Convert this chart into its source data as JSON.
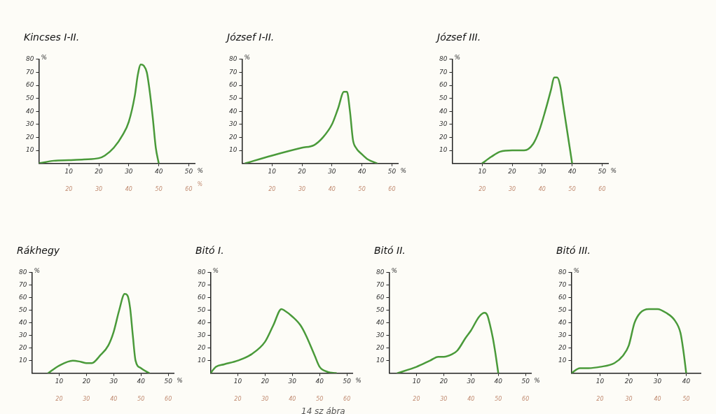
{
  "chart_data": [
    {
      "type": "line",
      "title": "Kincses I-II.",
      "ylabel": "%",
      "xlabel": "%",
      "x2label": "%",
      "xlim": [
        0,
        52
      ],
      "xticks": [
        10,
        20,
        30,
        40,
        50
      ],
      "ylim": [
        0,
        80
      ],
      "yticks": [
        10,
        20,
        30,
        40,
        50,
        60,
        70,
        80
      ],
      "x2lim": [
        10,
        62
      ],
      "x2ticks": [
        20,
        30,
        40,
        50,
        60
      ],
      "marker": "none",
      "series": [
        {
          "color": "#4a9a3a",
          "x": [
            0,
            5,
            10,
            15,
            20,
            22,
            25,
            28,
            30,
            32,
            33,
            34,
            35,
            36,
            37,
            38,
            39,
            40
          ],
          "values": [
            0,
            2,
            2.5,
            3,
            4,
            6,
            12,
            22,
            32,
            52,
            68,
            76,
            75,
            70,
            55,
            35,
            12,
            0
          ]
        }
      ]
    },
    {
      "type": "line",
      "title": "József I-II.",
      "ylabel": "%",
      "xlabel": "%",
      "xlim": [
        0,
        52
      ],
      "xticks": [
        10,
        20,
        30,
        40,
        50
      ],
      "ylim": [
        0,
        80
      ],
      "yticks": [
        10,
        20,
        30,
        40,
        50,
        60,
        70,
        80
      ],
      "x2lim": [
        10,
        62
      ],
      "x2ticks": [
        20,
        30,
        40,
        50,
        60
      ],
      "marker": "none",
      "series": [
        {
          "color": "#4a9a3a",
          "x": [
            1,
            10,
            20,
            24,
            27,
            30,
            32,
            34,
            35,
            36,
            37,
            38,
            40,
            42,
            45
          ],
          "values": [
            0,
            6,
            12,
            14,
            20,
            30,
            42,
            55,
            55,
            40,
            18,
            12,
            7,
            3,
            0
          ]
        }
      ]
    },
    {
      "type": "line",
      "title": "József III.",
      "ylabel": "%",
      "xlabel": "%",
      "xlim": [
        0,
        52
      ],
      "xticks": [
        10,
        20,
        30,
        40,
        50
      ],
      "ylim": [
        0,
        80
      ],
      "yticks": [
        10,
        20,
        30,
        40,
        50,
        60,
        70,
        80
      ],
      "x2lim": [
        10,
        62
      ],
      "x2ticks": [
        20,
        30,
        40,
        50,
        60
      ],
      "marker": "none",
      "series": [
        {
          "color": "#4a9a3a",
          "x": [
            10,
            13,
            16,
            20,
            24,
            27,
            29,
            31,
            33,
            34,
            35,
            36,
            37,
            38,
            39,
            40
          ],
          "values": [
            0,
            5,
            9,
            10,
            10,
            15,
            25,
            40,
            57,
            66,
            66,
            60,
            45,
            30,
            15,
            0
          ]
        }
      ]
    },
    {
      "type": "line",
      "title": "Rákhegy",
      "ylabel": "%",
      "xlabel": "%",
      "xlim": [
        0,
        52
      ],
      "xticks": [
        10,
        20,
        30,
        40,
        50
      ],
      "ylim": [
        0,
        80
      ],
      "yticks": [
        10,
        20,
        30,
        40,
        50,
        60,
        70,
        80
      ],
      "x2lim": [
        10,
        62
      ],
      "x2ticks": [
        20,
        30,
        40,
        50,
        60
      ],
      "marker": "none",
      "series": [
        {
          "color": "#4a9a3a",
          "x": [
            6,
            10,
            15,
            18,
            20,
            22,
            25,
            28,
            30,
            32,
            34,
            35,
            36,
            37,
            38,
            40,
            43
          ],
          "values": [
            0,
            6,
            10,
            9,
            8,
            8,
            14,
            22,
            33,
            50,
            63,
            62,
            52,
            30,
            10,
            4,
            0
          ]
        }
      ]
    },
    {
      "type": "line",
      "title": "Bitó I.",
      "ylabel": "%",
      "xlabel": "%",
      "xlim": [
        0,
        52
      ],
      "xticks": [
        10,
        20,
        30,
        40,
        50
      ],
      "ylim": [
        0,
        80
      ],
      "yticks": [
        10,
        20,
        30,
        40,
        50,
        60,
        70,
        80
      ],
      "x2lim": [
        10,
        62
      ],
      "x2ticks": [
        20,
        30,
        40,
        50,
        60
      ],
      "marker": "none",
      "annotations": [
        "14 sz ábra"
      ],
      "series": [
        {
          "color": "#4a9a3a",
          "x": [
            0,
            2,
            5,
            10,
            15,
            20,
            23,
            26,
            27,
            30,
            33,
            35,
            38,
            40,
            43,
            46
          ],
          "values": [
            0,
            5,
            7,
            10,
            15,
            25,
            38,
            51,
            50,
            45,
            38,
            30,
            15,
            5,
            1,
            0
          ]
        }
      ]
    },
    {
      "type": "line",
      "title": "Bitó II.",
      "ylabel": "%",
      "xlabel": "%",
      "xlim": [
        0,
        52
      ],
      "xticks": [
        10,
        20,
        30,
        40,
        50
      ],
      "ylim": [
        0,
        80
      ],
      "yticks": [
        10,
        20,
        30,
        40,
        50,
        60,
        70,
        80
      ],
      "x2lim": [
        10,
        62
      ],
      "x2ticks": [
        20,
        30,
        40,
        50,
        60
      ],
      "marker": "none",
      "series": [
        {
          "color": "#4a9a3a",
          "x": [
            3,
            10,
            15,
            18,
            20,
            23,
            25,
            28,
            30,
            33,
            35,
            36,
            37,
            38,
            39,
            40
          ],
          "values": [
            0,
            5,
            10,
            13,
            13,
            15,
            18,
            28,
            34,
            45,
            48,
            46,
            38,
            28,
            15,
            0
          ]
        }
      ]
    },
    {
      "type": "line",
      "title": "Bitó III.",
      "ylabel": "%",
      "xlim": [
        0,
        45
      ],
      "xticks": [
        10,
        20,
        30,
        40
      ],
      "ylim": [
        0,
        80
      ],
      "yticks": [
        10,
        20,
        30,
        40,
        50,
        60,
        70,
        80
      ],
      "x2lim": [
        10,
        55
      ],
      "x2ticks": [
        20,
        30,
        40,
        50
      ],
      "marker": "none",
      "series": [
        {
          "color": "#4a9a3a",
          "x": [
            0,
            3,
            6,
            10,
            15,
            18,
            20,
            22,
            24,
            27,
            30,
            33,
            36,
            38,
            39,
            40
          ],
          "values": [
            0,
            4,
            4,
            5,
            8,
            14,
            22,
            40,
            48,
            51,
            51,
            48,
            42,
            32,
            18,
            0
          ]
        }
      ]
    }
  ]
}
